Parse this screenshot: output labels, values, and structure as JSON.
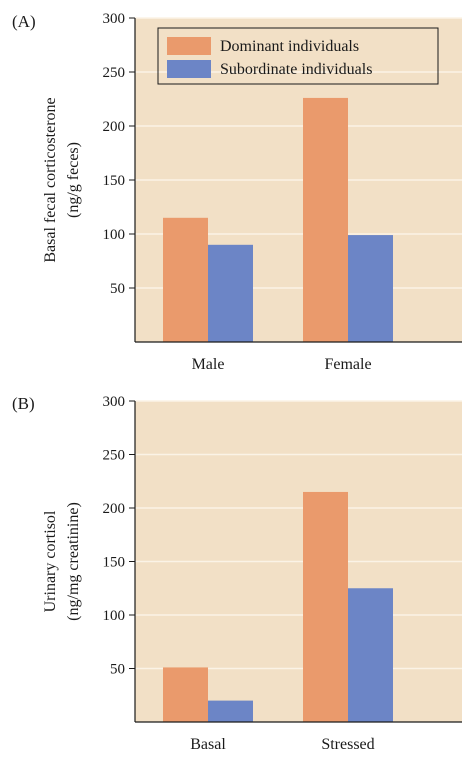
{
  "colors": {
    "plot_background": "#f2e0c6",
    "gridline": "#fbf3e6",
    "dominant": "#ea9a6c",
    "subordinate": "#6c85c6",
    "axis": "#1a1a1a"
  },
  "legend": {
    "items": [
      {
        "label": "Dominant individuals",
        "color_key": "dominant"
      },
      {
        "label": "Subordinate individuals",
        "color_key": "subordinate"
      }
    ]
  },
  "chart_data": [
    {
      "panel_label": "(A)",
      "type": "bar",
      "categories": [
        "Male",
        "Female"
      ],
      "series": [
        {
          "name": "Dominant individuals",
          "values": [
            115,
            226
          ]
        },
        {
          "name": "Subordinate individuals",
          "values": [
            90,
            99
          ]
        }
      ],
      "ylabel_line1": "Basal fecal corticosterone",
      "ylabel_line2": "(ng/g feces)",
      "ylim": [
        0,
        300
      ],
      "yticks": [
        50,
        100,
        150,
        200,
        250,
        300
      ],
      "grid": true,
      "legend_placement": "top-right"
    },
    {
      "panel_label": "(B)",
      "type": "bar",
      "categories": [
        "Basal",
        "Stressed"
      ],
      "series": [
        {
          "name": "Dominant individuals",
          "values": [
            51,
            215
          ]
        },
        {
          "name": "Subordinate individuals",
          "values": [
            20,
            125
          ]
        }
      ],
      "ylabel_line1": "Urinary cortisol",
      "ylabel_line2": "(ng/mg creatinine)",
      "ylim": [
        0,
        300
      ],
      "yticks": [
        50,
        100,
        150,
        200,
        250,
        300
      ],
      "grid": true
    }
  ]
}
